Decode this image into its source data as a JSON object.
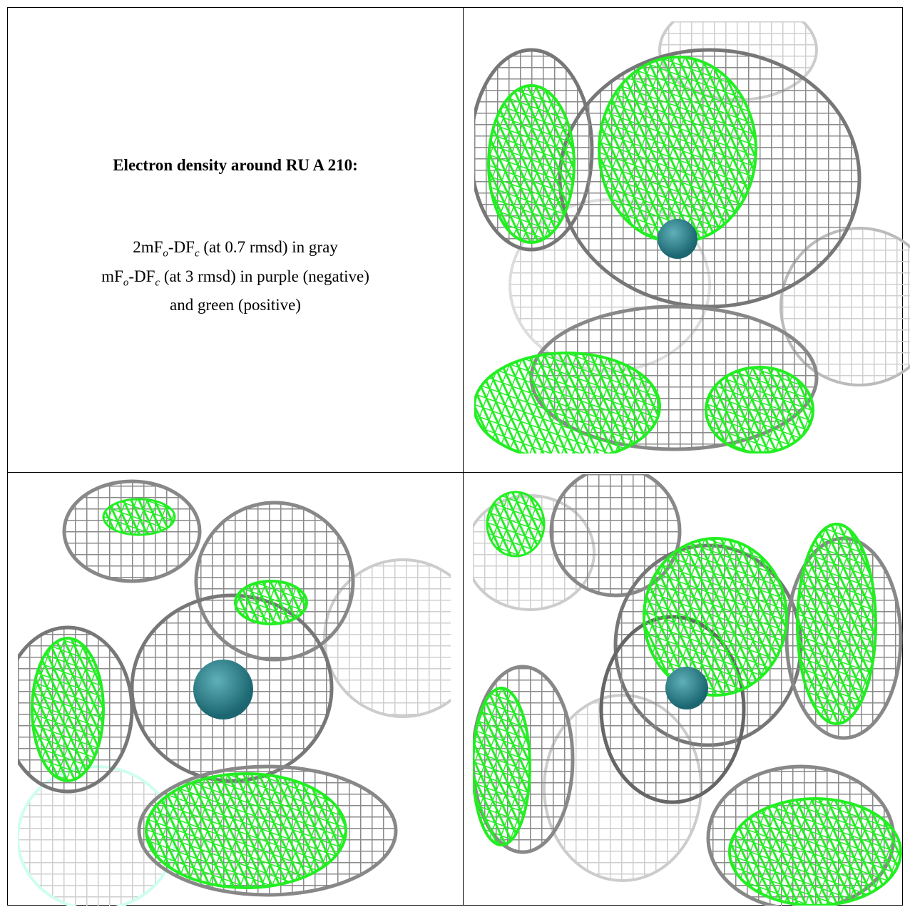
{
  "header": {
    "title": "Electron density around RU A 210:"
  },
  "legend": {
    "lines": [
      [
        "2mF",
        "o",
        "-DF",
        "c",
        " (at 0.7 rmsd) in gray"
      ],
      [
        "mF",
        "o",
        "-DF",
        "c",
        " (at 3 rmsd) in purple (negative)"
      ],
      [
        "and green (positive)"
      ]
    ]
  }
}
